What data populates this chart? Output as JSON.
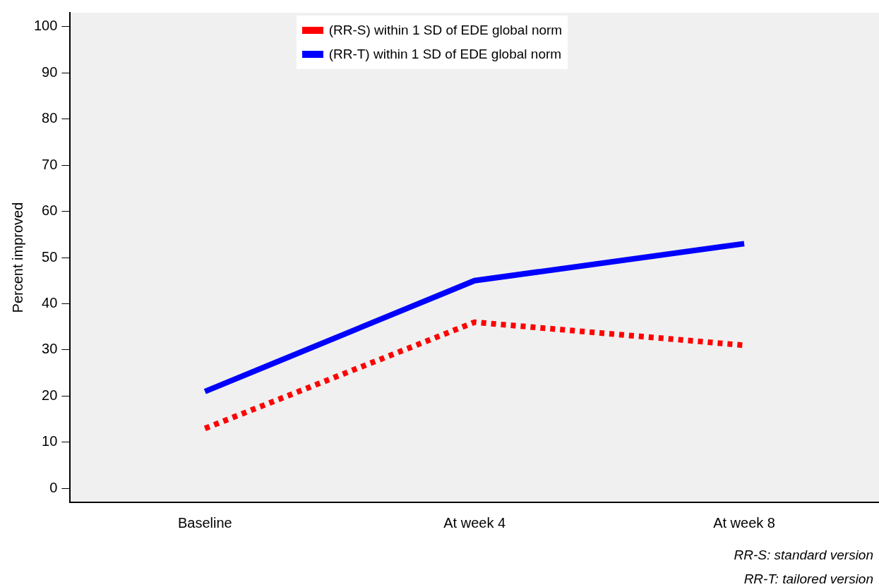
{
  "chart_data": {
    "type": "line",
    "ylabel": "Percent improved",
    "categories": [
      "Baseline",
      "At week 4",
      "At week 8"
    ],
    "series": [
      {
        "name": "(RR-S) within 1 SD of EDE global norm",
        "color": "#ff0000",
        "line_style": "dotted",
        "values": [
          13,
          36,
          31
        ]
      },
      {
        "name": "(RR-T) within 1 SD of EDE global norm",
        "color": "#0000ff",
        "line_style": "solid",
        "values": [
          21,
          45,
          53
        ]
      }
    ],
    "ylim": [
      -3,
      103
    ],
    "yticks": [
      0,
      10,
      20,
      30,
      40,
      50,
      60,
      70,
      80,
      90,
      100
    ],
    "grid": false,
    "legend": "top",
    "marker": "none",
    "annotations": [
      "RR-S: standard version",
      "RR-T: tailored version"
    ]
  }
}
